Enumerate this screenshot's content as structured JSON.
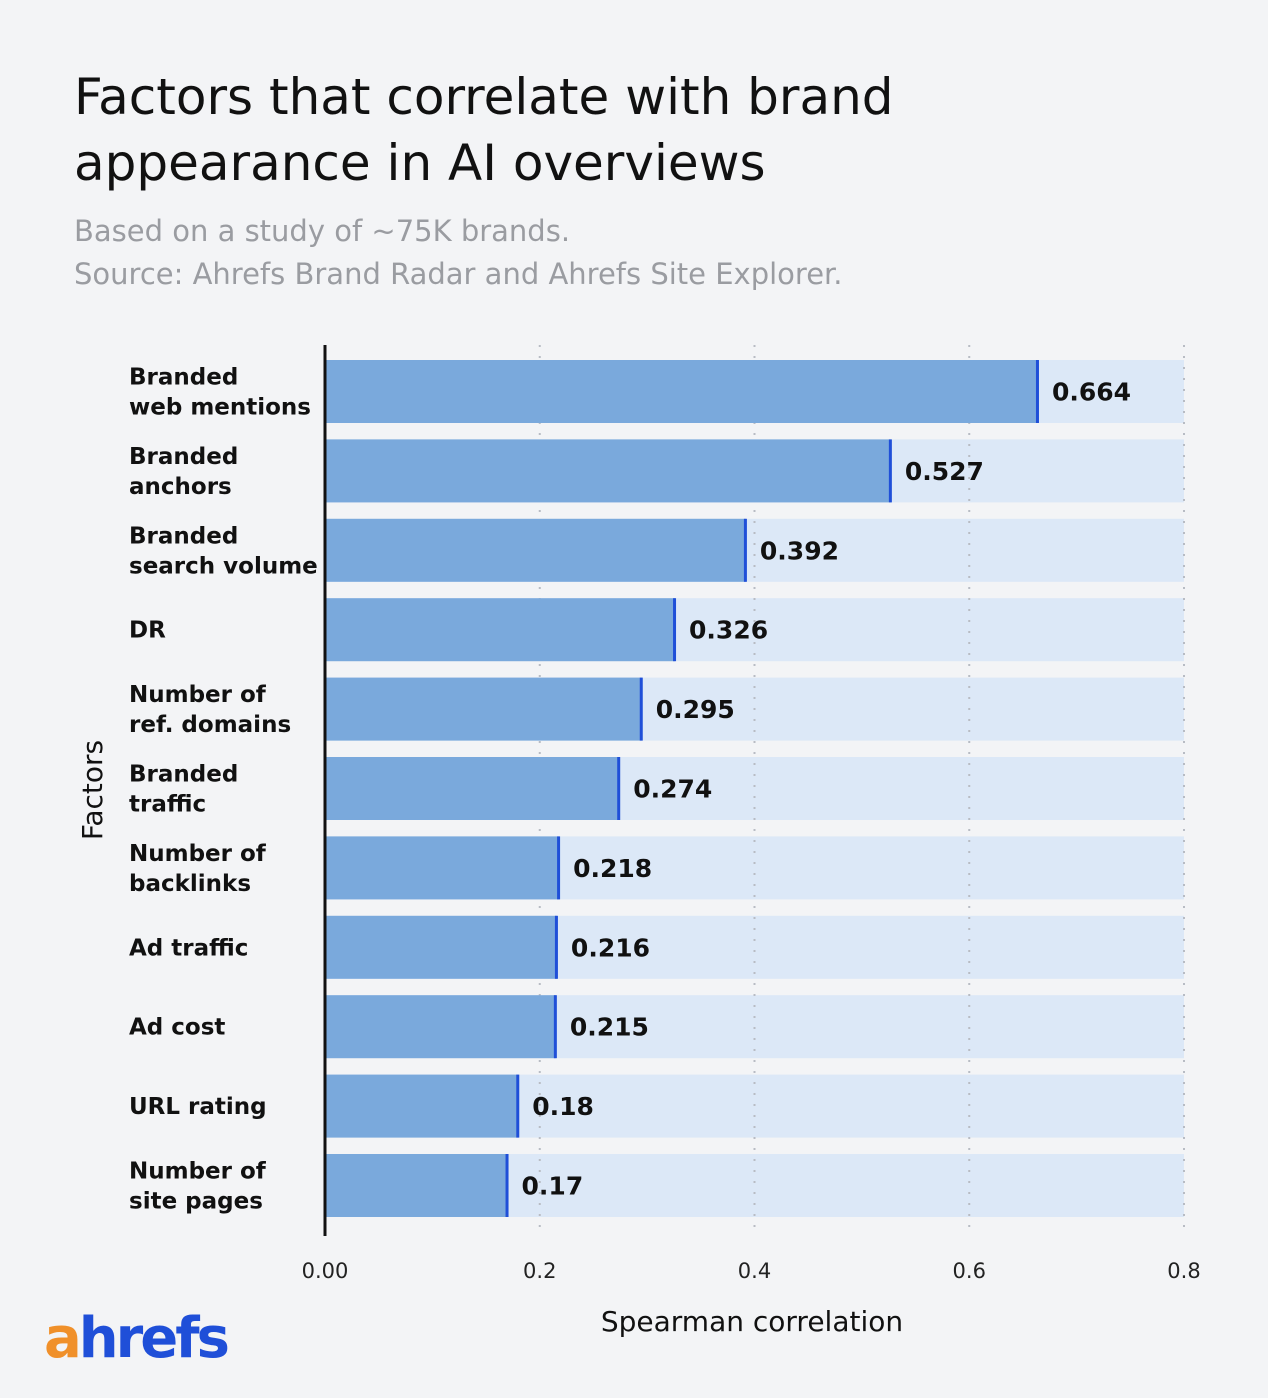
{
  "chart_data": {
    "type": "bar",
    "orientation": "horizontal",
    "title": "Factors that correlate with brand appearance in AI overviews",
    "subtitle": [
      "Based on a study of ~75K brands.",
      "Source: Ahrefs Brand Radar and Ahrefs Site Explorer."
    ],
    "xlabel": "Spearman correlation",
    "ylabel": "Factors",
    "xlim": [
      0,
      0.8
    ],
    "xticks": [
      "0.00",
      "0.2",
      "0.4",
      "0.6",
      "0.8"
    ],
    "grid": "vertical dotted",
    "categories": [
      [
        "Branded",
        "web mentions"
      ],
      [
        "Branded",
        "anchors"
      ],
      [
        "Branded",
        "search volume"
      ],
      [
        "DR"
      ],
      [
        "Number of",
        "ref. domains"
      ],
      [
        "Branded",
        "traffic"
      ],
      [
        "Number of",
        "backlinks"
      ],
      [
        "Ad traffic"
      ],
      [
        "Ad cost"
      ],
      [
        "URL rating"
      ],
      [
        "Number of",
        "site pages"
      ]
    ],
    "values": [
      0.664,
      0.527,
      0.392,
      0.326,
      0.295,
      0.274,
      0.218,
      0.216,
      0.215,
      0.18,
      0.17
    ],
    "labels": [
      "0.664",
      "0.527",
      "0.392",
      "0.326",
      "0.295",
      "0.274",
      "0.218",
      "0.216",
      "0.215",
      "0.18",
      "0.17"
    ],
    "colors": {
      "bar": "#7aa9dc",
      "bar_end": "#1f4fd8",
      "track": "#dce8f7"
    }
  },
  "brand": {
    "logo": "ahrefs",
    "logo_a": "a",
    "logo_rest": "hrefs"
  }
}
